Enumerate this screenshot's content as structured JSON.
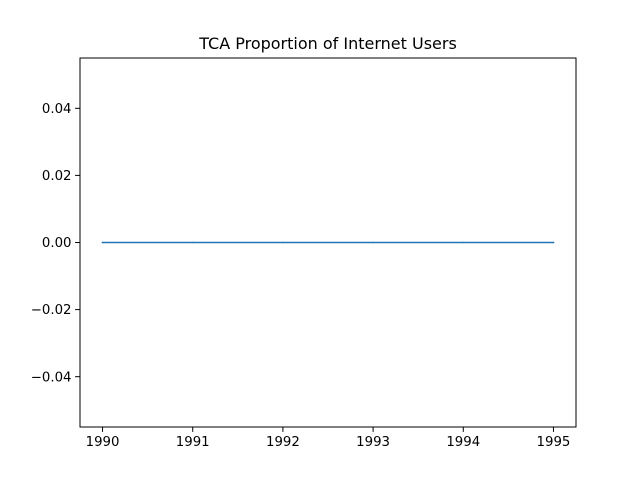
{
  "chart_data": {
    "type": "line",
    "title": "TCA Proportion of Internet Users",
    "xlabel": "",
    "ylabel": "",
    "x": [
      1990,
      1991,
      1992,
      1993,
      1994,
      1995
    ],
    "series": [
      {
        "values": [
          0,
          0,
          0,
          0,
          0,
          0
        ],
        "color": "#1f77b4"
      }
    ],
    "xlim": [
      1989.75,
      1995.25
    ],
    "ylim": [
      -0.055,
      0.055
    ],
    "x_ticks": [
      1990,
      1991,
      1992,
      1993,
      1994,
      1995
    ],
    "x_tick_labels": [
      "1990",
      "1991",
      "1992",
      "1993",
      "1994",
      "1995"
    ],
    "y_ticks": [
      -0.04,
      -0.02,
      0.0,
      0.02,
      0.04
    ],
    "y_tick_labels": [
      "−0.04",
      "−0.02",
      "0.00",
      "0.02",
      "0.04"
    ],
    "grid": false,
    "legend": "none"
  }
}
